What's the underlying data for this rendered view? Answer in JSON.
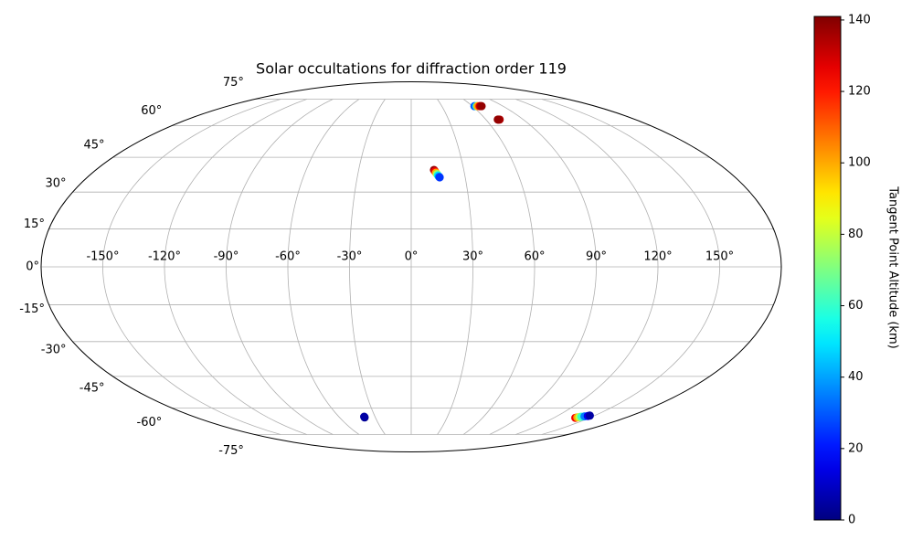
{
  "chart_data": {
    "type": "scatter",
    "projection": "mollweide",
    "title": "Solar occultations for diffraction order 119",
    "colorbar_label": "Tangent Point Altitude (km)",
    "colormap": "jet",
    "grid": true,
    "x": [
      62,
      64,
      65,
      67,
      68,
      69,
      70,
      71,
      69.5,
      13,
      13.5,
      14,
      14.5,
      15,
      15.5,
      15.8,
      -39,
      -39,
      138,
      139,
      140,
      141,
      143,
      145,
      146
    ],
    "y": [
      70.7,
      70.7,
      70.7,
      70.7,
      70.7,
      70.7,
      63.2,
      63.2,
      63.2,
      39.4,
      38.8,
      38.2,
      37.6,
      37,
      36.5,
      36.2,
      -65,
      -64.6,
      -65.2,
      -65,
      -64.8,
      -64.6,
      -64.4,
      -64.2,
      -64
    ],
    "values": [
      30,
      60,
      100,
      125,
      135,
      138,
      140,
      135,
      138,
      138,
      125,
      100,
      75,
      50,
      35,
      25,
      2,
      5,
      125,
      100,
      80,
      60,
      35,
      15,
      5
    ],
    "clim": [
      0,
      141
    ],
    "cticks": [
      0,
      20,
      40,
      60,
      80,
      100,
      120,
      140
    ],
    "xticks": [
      {
        "value": -150,
        "label": "-150°"
      },
      {
        "value": -120,
        "label": "-120°"
      },
      {
        "value": -90,
        "label": "-90°"
      },
      {
        "value": -60,
        "label": "-60°"
      },
      {
        "value": -30,
        "label": "-30°"
      },
      {
        "value": 0,
        "label": "0°"
      },
      {
        "value": 30,
        "label": "30°"
      },
      {
        "value": 60,
        "label": "60°"
      },
      {
        "value": 90,
        "label": "90°"
      },
      {
        "value": 120,
        "label": "120°"
      },
      {
        "value": 150,
        "label": "150°"
      }
    ],
    "yticks": [
      {
        "value": -75,
        "label": "-75°"
      },
      {
        "value": -60,
        "label": "-60°"
      },
      {
        "value": -45,
        "label": "-45°"
      },
      {
        "value": -30,
        "label": "-30°"
      },
      {
        "value": -15,
        "label": "-15°"
      },
      {
        "value": 0,
        "label": "0°"
      },
      {
        "value": 15,
        "label": "15°"
      },
      {
        "value": 30,
        "label": "30°"
      },
      {
        "value": 45,
        "label": "45°"
      },
      {
        "value": 60,
        "label": "60°"
      },
      {
        "value": 75,
        "label": "75°"
      }
    ]
  }
}
